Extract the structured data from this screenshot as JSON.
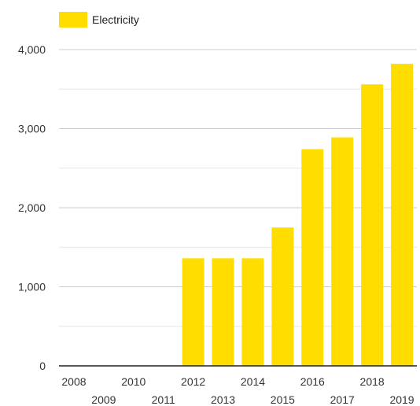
{
  "chart_data": {
    "type": "bar",
    "categories": [
      "2008",
      "2009",
      "2010",
      "2011",
      "2012",
      "2013",
      "2014",
      "2015",
      "2016",
      "2017",
      "2018",
      "2019"
    ],
    "series": [
      {
        "name": "Electricity",
        "values": [
          0,
          0,
          0,
          0,
          1360,
          1360,
          1360,
          1750,
          2740,
          2890,
          3560,
          3820
        ]
      }
    ],
    "ylim": [
      0,
      4000
    ],
    "y_ticks": [
      0,
      1000,
      2000,
      3000,
      4000
    ],
    "y_tick_labels": [
      "0",
      "1,000",
      "2,000",
      "3,000",
      "4,000"
    ],
    "grid": true,
    "legend_position": "top-left",
    "colors": {
      "bar": "#ffdd00",
      "grid": "#cccccc",
      "axis": "#222222",
      "text": "#333333"
    }
  }
}
